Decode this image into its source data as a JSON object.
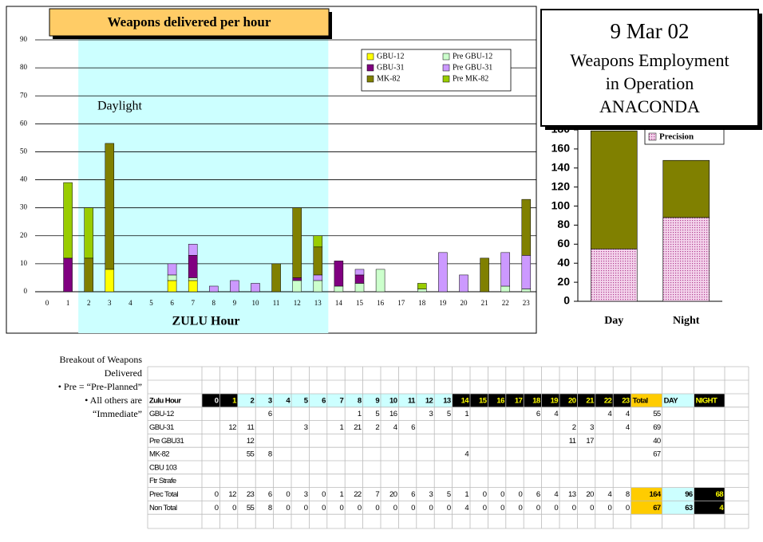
{
  "title_box": {
    "lines": [
      "9 Mar 02",
      "Weapons Employment",
      "in Operation",
      "ANACONDA"
    ]
  },
  "notes": {
    "lines": [
      "Breakout of Weapons",
      "Delivered",
      "• Pre = “Pre-Planned”",
      "• All others are",
      "“Immediate”"
    ]
  },
  "chart_data": [
    {
      "type": "bar",
      "stacked": true,
      "title": "Weapons delivered per hour",
      "x_label": "ZULU Hour",
      "categories": [
        0,
        1,
        2,
        3,
        4,
        5,
        6,
        7,
        8,
        9,
        10,
        11,
        12,
        13,
        14,
        15,
        16,
        17,
        18,
        19,
        20,
        21,
        22,
        23
      ],
      "daylight": {
        "label": "Daylight",
        "from": 1.5,
        "to": 13.5
      },
      "series": [
        {
          "name": "GBU-12",
          "color": "#ffff00",
          "values": [
            0,
            0,
            0,
            8,
            0,
            0,
            4,
            4,
            0,
            0,
            0,
            0,
            0,
            0,
            0,
            0,
            0,
            0,
            0,
            0,
            0,
            0,
            0,
            0
          ]
        },
        {
          "name": "Pre GBU-12",
          "color": "#ccffcc",
          "values": [
            0,
            0,
            0,
            0,
            0,
            0,
            2,
            1,
            0,
            0,
            0,
            0,
            4,
            4,
            2,
            3,
            8,
            0,
            1,
            0,
            0,
            0,
            2,
            1
          ]
        },
        {
          "name": "GBU-31",
          "color": "#800080",
          "values": [
            0,
            12,
            0,
            0,
            0,
            0,
            0,
            8,
            0,
            0,
            0,
            0,
            1,
            0,
            9,
            3,
            0,
            0,
            0,
            0,
            0,
            0,
            0,
            0
          ]
        },
        {
          "name": "Pre GBU-31",
          "color": "#cc99ff",
          "values": [
            0,
            0,
            0,
            0,
            0,
            0,
            4,
            4,
            2,
            4,
            3,
            0,
            0,
            2,
            0,
            2,
            0,
            0,
            0,
            14,
            6,
            0,
            12,
            12
          ]
        },
        {
          "name": "MK-82",
          "color": "#808000",
          "values": [
            0,
            0,
            12,
            45,
            0,
            0,
            0,
            0,
            0,
            0,
            0,
            10,
            25,
            10,
            0,
            0,
            0,
            0,
            0,
            0,
            0,
            12,
            0,
            20
          ]
        },
        {
          "name": "Pre MK-82",
          "color": "#99cc00",
          "values": [
            0,
            27,
            18,
            0,
            0,
            0,
            0,
            0,
            0,
            0,
            0,
            0,
            0,
            4,
            0,
            0,
            0,
            0,
            2,
            0,
            0,
            0,
            0,
            0
          ]
        }
      ],
      "ylim": [
        0,
        90
      ],
      "yticks": [
        0,
        10,
        20,
        30,
        40,
        50,
        60,
        70,
        80,
        90
      ],
      "grid": true
    },
    {
      "type": "bar",
      "stacked": true,
      "categories": [
        "Day",
        "Night"
      ],
      "series": [
        {
          "name": "Precision",
          "color": "#e8b0d8",
          "values": [
            55,
            88
          ]
        },
        {
          "color": "#808000",
          "values": [
            124,
            60
          ]
        }
      ],
      "ylim": [
        0,
        180
      ],
      "yticks": [
        0,
        20,
        40,
        60,
        80,
        100,
        120,
        140,
        160,
        180
      ],
      "grid": false
    }
  ],
  "table": {
    "header": [
      "Zulu Hour",
      0,
      1,
      2,
      3,
      4,
      5,
      6,
      7,
      8,
      9,
      10,
      11,
      12,
      13,
      14,
      15,
      16,
      17,
      18,
      19,
      20,
      21,
      22,
      23,
      "Total",
      "DAY",
      "NIGHT"
    ],
    "rows": [
      [
        "GBU-12",
        null,
        null,
        null,
        6,
        null,
        null,
        null,
        null,
        1,
        5,
        16,
        null,
        3,
        5,
        1,
        null,
        null,
        null,
        6,
        4,
        null,
        null,
        4,
        4,
        55,
        null,
        null
      ],
      [
        "GBU-31",
        null,
        12,
        11,
        null,
        null,
        3,
        null,
        1,
        21,
        2,
        4,
        6,
        null,
        null,
        null,
        null,
        null,
        null,
        null,
        null,
        2,
        3,
        null,
        4,
        69,
        null,
        null
      ],
      [
        "Pre GBU31",
        null,
        null,
        12,
        null,
        null,
        null,
        null,
        null,
        null,
        null,
        null,
        null,
        null,
        null,
        null,
        null,
        null,
        null,
        null,
        null,
        11,
        17,
        null,
        null,
        40,
        null,
        null
      ],
      [
        "MK-82",
        null,
        null,
        55,
        8,
        null,
        null,
        null,
        null,
        null,
        null,
        null,
        null,
        null,
        null,
        4,
        null,
        null,
        null,
        null,
        null,
        null,
        null,
        null,
        null,
        67,
        null,
        null
      ],
      [
        "CBU 103",
        null,
        null,
        null,
        null,
        null,
        null,
        null,
        null,
        null,
        null,
        null,
        null,
        null,
        null,
        null,
        null,
        null,
        null,
        null,
        null,
        null,
        null,
        null,
        null,
        null,
        null,
        null
      ],
      [
        "Ftr Strafe",
        null,
        null,
        null,
        null,
        null,
        null,
        null,
        null,
        null,
        null,
        null,
        null,
        null,
        null,
        null,
        null,
        null,
        null,
        null,
        null,
        null,
        null,
        null,
        null,
        null,
        null,
        null
      ],
      [
        "Prec Total",
        0,
        12,
        23,
        6,
        0,
        3,
        0,
        1,
        22,
        7,
        20,
        6,
        3,
        5,
        1,
        0,
        0,
        0,
        6,
        4,
        13,
        20,
        4,
        8,
        164,
        96,
        68
      ],
      [
        "Non Total",
        0,
        0,
        55,
        8,
        0,
        0,
        0,
        0,
        0,
        0,
        0,
        0,
        0,
        0,
        4,
        0,
        0,
        0,
        0,
        0,
        0,
        0,
        0,
        0,
        67,
        63,
        4
      ]
    ]
  }
}
